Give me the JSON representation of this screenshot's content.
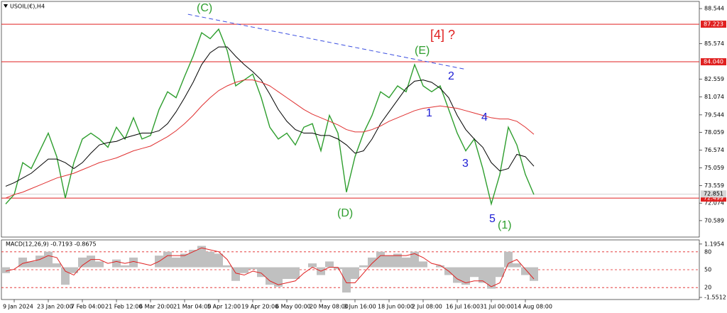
{
  "chart_data": [
    {
      "type": "line",
      "title": "USOIL(€),H4",
      "categories": [
        null,
        "9 Jan 2024",
        null,
        null,
        null,
        "23 Jan 20:00",
        null,
        null,
        null,
        "7 Feb 04:00",
        null,
        null,
        null,
        "21 Feb 12:00",
        null,
        null,
        null,
        "6 Mar 20:00",
        null,
        null,
        null,
        "21 Mar 04:00",
        null,
        null,
        null,
        "5 Apr 12:00",
        null,
        null,
        null,
        "19 Apr 20:00",
        null,
        null,
        null,
        "6 May 00:00",
        null,
        null,
        null,
        "20 May 08:00",
        null,
        null,
        null,
        "3 Jun 16:00",
        null,
        null,
        null,
        "18 Jun 00:00",
        null,
        null,
        null,
        "2 Jul 08:00",
        null,
        null,
        null,
        "16 Jul 16:00",
        null,
        null,
        null,
        "31 Jul 00:00",
        null,
        null,
        null,
        "14 Aug 08:00",
        null
      ],
      "series": [
        {
          "color": "#2e9e2e",
          "values": [
            72.0,
            72.8,
            75.5,
            75.0,
            76.5,
            78.0,
            76.0,
            72.5,
            75.5,
            77.5,
            78.0,
            77.5,
            76.8,
            78.5,
            77.5,
            79.3,
            77.5,
            77.8,
            80.0,
            81.5,
            81.0,
            82.8,
            84.5,
            86.5,
            86.0,
            86.8,
            85.0,
            82.0,
            82.5,
            83.0,
            81.0,
            78.5,
            77.5,
            78.0,
            77.0,
            78.5,
            78.8,
            76.5,
            79.5,
            78.0,
            73.0,
            76.0,
            78.0,
            79.5,
            81.5,
            81.0,
            82.0,
            81.5,
            83.8,
            82.0,
            81.5,
            82.0,
            80.0,
            78.0,
            76.5,
            77.5,
            75.0,
            72.0,
            74.5,
            78.5,
            77.0,
            74.5,
            72.8
          ]
        },
        {
          "color": "#000000",
          "values": [
            73.5,
            73.8,
            74.2,
            74.6,
            75.2,
            75.8,
            75.8,
            75.5,
            75.0,
            75.5,
            76.3,
            77.0,
            77.2,
            77.3,
            77.6,
            77.8,
            78.0,
            78.0,
            78.2,
            78.8,
            79.8,
            81.0,
            82.3,
            83.8,
            84.8,
            85.3,
            85.3,
            84.5,
            83.8,
            83.2,
            82.5,
            81.3,
            80.0,
            79.0,
            78.3,
            78.0,
            78.0,
            77.8,
            77.8,
            77.5,
            77.0,
            76.3,
            76.5,
            77.5,
            78.8,
            79.8,
            80.8,
            81.8,
            82.4,
            82.5,
            82.3,
            81.8,
            81.0,
            79.5,
            78.3,
            77.5,
            76.8,
            75.5,
            74.8,
            75.0,
            76.2,
            76.0,
            75.2
          ]
        },
        {
          "color": "#e03030",
          "values": [
            72.5,
            72.8,
            73.0,
            73.3,
            73.6,
            73.9,
            74.2,
            74.4,
            74.6,
            74.9,
            75.2,
            75.5,
            75.7,
            75.9,
            76.2,
            76.5,
            76.7,
            76.9,
            77.3,
            77.7,
            78.2,
            78.8,
            79.5,
            80.3,
            81.0,
            81.6,
            82.0,
            82.3,
            82.5,
            82.5,
            82.3,
            82.0,
            81.5,
            81.0,
            80.5,
            80.0,
            79.6,
            79.3,
            79.0,
            78.7,
            78.3,
            78.1,
            78.1,
            78.3,
            78.6,
            79.0,
            79.3,
            79.6,
            79.9,
            80.1,
            80.2,
            80.3,
            80.2,
            80.1,
            79.9,
            79.7,
            79.5,
            79.3,
            79.2,
            79.2,
            79.0,
            78.5,
            77.9
          ]
        }
      ],
      "ylim": [
        69.2,
        89.15
      ],
      "yticks": [
        88.544,
        85.574,
        82.559,
        81.074,
        79.544,
        78.059,
        76.574,
        75.059,
        73.559,
        72.074,
        70.589
      ],
      "hlines": [
        {
          "value": 87.223,
          "color": "#e02020"
        },
        {
          "value": 84.04,
          "label": "84.040",
          "color": "#e02020"
        },
        {
          "value": 72.499,
          "color": "#e02020"
        }
      ],
      "last_price": 72.851,
      "trendline": {
        "from": [
          21.4,
          88.06
        ],
        "to": [
          54,
          83.4
        ],
        "color": "#3a4ee0"
      },
      "annotations": [
        "(C)",
        "(E)",
        "[4] ?",
        "1",
        "2",
        "3",
        "4",
        "5",
        "(D)",
        "(1)"
      ]
    },
    {
      "type": "macd",
      "title": "MACD(12,26,9) -0.7193 -0.8675",
      "series": [
        {
          "color": "#c0c0c0",
          "values": [
            -0.3,
            0.0,
            0.5,
            0.3,
            0.6,
            0.8,
            0.2,
            -0.9,
            -0.3,
            0.5,
            0.6,
            0.3,
            0.0,
            0.4,
            0.1,
            0.5,
            0.0,
            0.0,
            0.6,
            0.8,
            0.5,
            0.7,
            0.9,
            1.1,
            0.8,
            0.7,
            0.1,
            -0.7,
            -0.3,
            -0.1,
            -0.5,
            -0.9,
            -1.0,
            -0.6,
            -0.6,
            0.0,
            0.2,
            -0.4,
            0.3,
            -0.1,
            -1.3,
            -0.6,
            0.1,
            0.5,
            0.8,
            0.6,
            0.7,
            0.5,
            0.8,
            0.3,
            0.0,
            0.1,
            -0.4,
            -0.8,
            -0.9,
            -0.5,
            -0.8,
            -1.1,
            -0.5,
            0.8,
            0.2,
            -0.4,
            -0.7
          ]
        },
        {
          "color": "#e02020",
          "values": [
            -0.2,
            -0.1,
            0.2,
            0.3,
            0.4,
            0.6,
            0.5,
            -0.2,
            -0.4,
            0.1,
            0.4,
            0.4,
            0.2,
            0.3,
            0.2,
            0.3,
            0.2,
            0.1,
            0.3,
            0.6,
            0.6,
            0.6,
            0.8,
            1.0,
            0.9,
            0.8,
            0.4,
            -0.3,
            -0.4,
            -0.2,
            -0.3,
            -0.7,
            -0.9,
            -0.8,
            -0.7,
            -0.3,
            0.0,
            -0.2,
            0.0,
            0.0,
            -0.8,
            -0.8,
            -0.3,
            0.2,
            0.6,
            0.6,
            0.6,
            0.6,
            0.7,
            0.5,
            0.2,
            0.1,
            -0.2,
            -0.6,
            -0.8,
            -0.7,
            -0.7,
            -1.0,
            -0.8,
            0.2,
            0.4,
            -0.1,
            -0.6
          ]
        }
      ],
      "ylim": [
        -1.66,
        1.41
      ],
      "yticks": [
        1.1954,
        -1.5512
      ],
      "y2lim": [
        0,
        100
      ],
      "y2ticks": [
        80,
        50,
        20
      ]
    }
  ]
}
